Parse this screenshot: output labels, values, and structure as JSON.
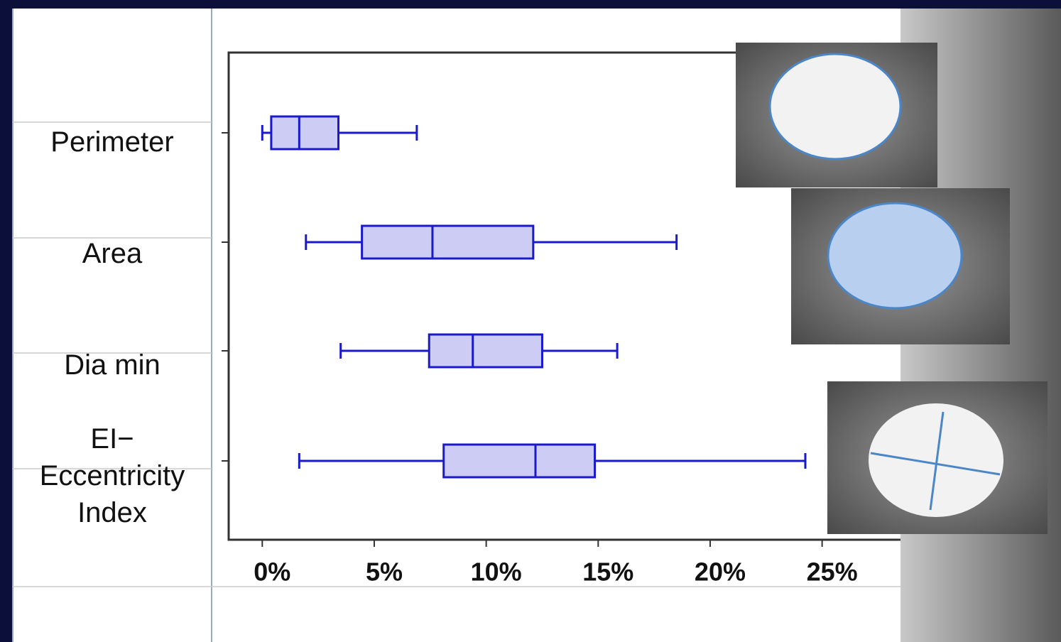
{
  "chart_data": {
    "type": "box",
    "categories": [
      "Perimeter",
      "Area",
      "Dia min",
      "EI− Eccentricity Index"
    ],
    "boxes": [
      {
        "min": 0,
        "q1": 0.4,
        "median": 1.65,
        "q3": 3.4,
        "max": 6.9
      },
      {
        "min": 1.95,
        "q1": 4.45,
        "median": 7.6,
        "q3": 12.1,
        "max": 18.5
      },
      {
        "min": 3.5,
        "q1": 7.45,
        "median": 9.4,
        "q3": 12.5,
        "max": 15.85
      },
      {
        "min": 1.65,
        "q1": 8.1,
        "median": 12.2,
        "q3": 14.85,
        "max": 24.25
      }
    ],
    "color": "#1a1acc",
    "fill": "#ccccf5",
    "xlim": [
      -1.5,
      28.5
    ],
    "xticks": [
      {
        "value": 0,
        "label": "0%"
      },
      {
        "value": 5,
        "label": "5%"
      },
      {
        "value": 10,
        "label": "10%"
      },
      {
        "value": 15,
        "label": "15%"
      },
      {
        "value": 20,
        "label": "20%"
      },
      {
        "value": 25,
        "label": "25%"
      }
    ]
  }
}
